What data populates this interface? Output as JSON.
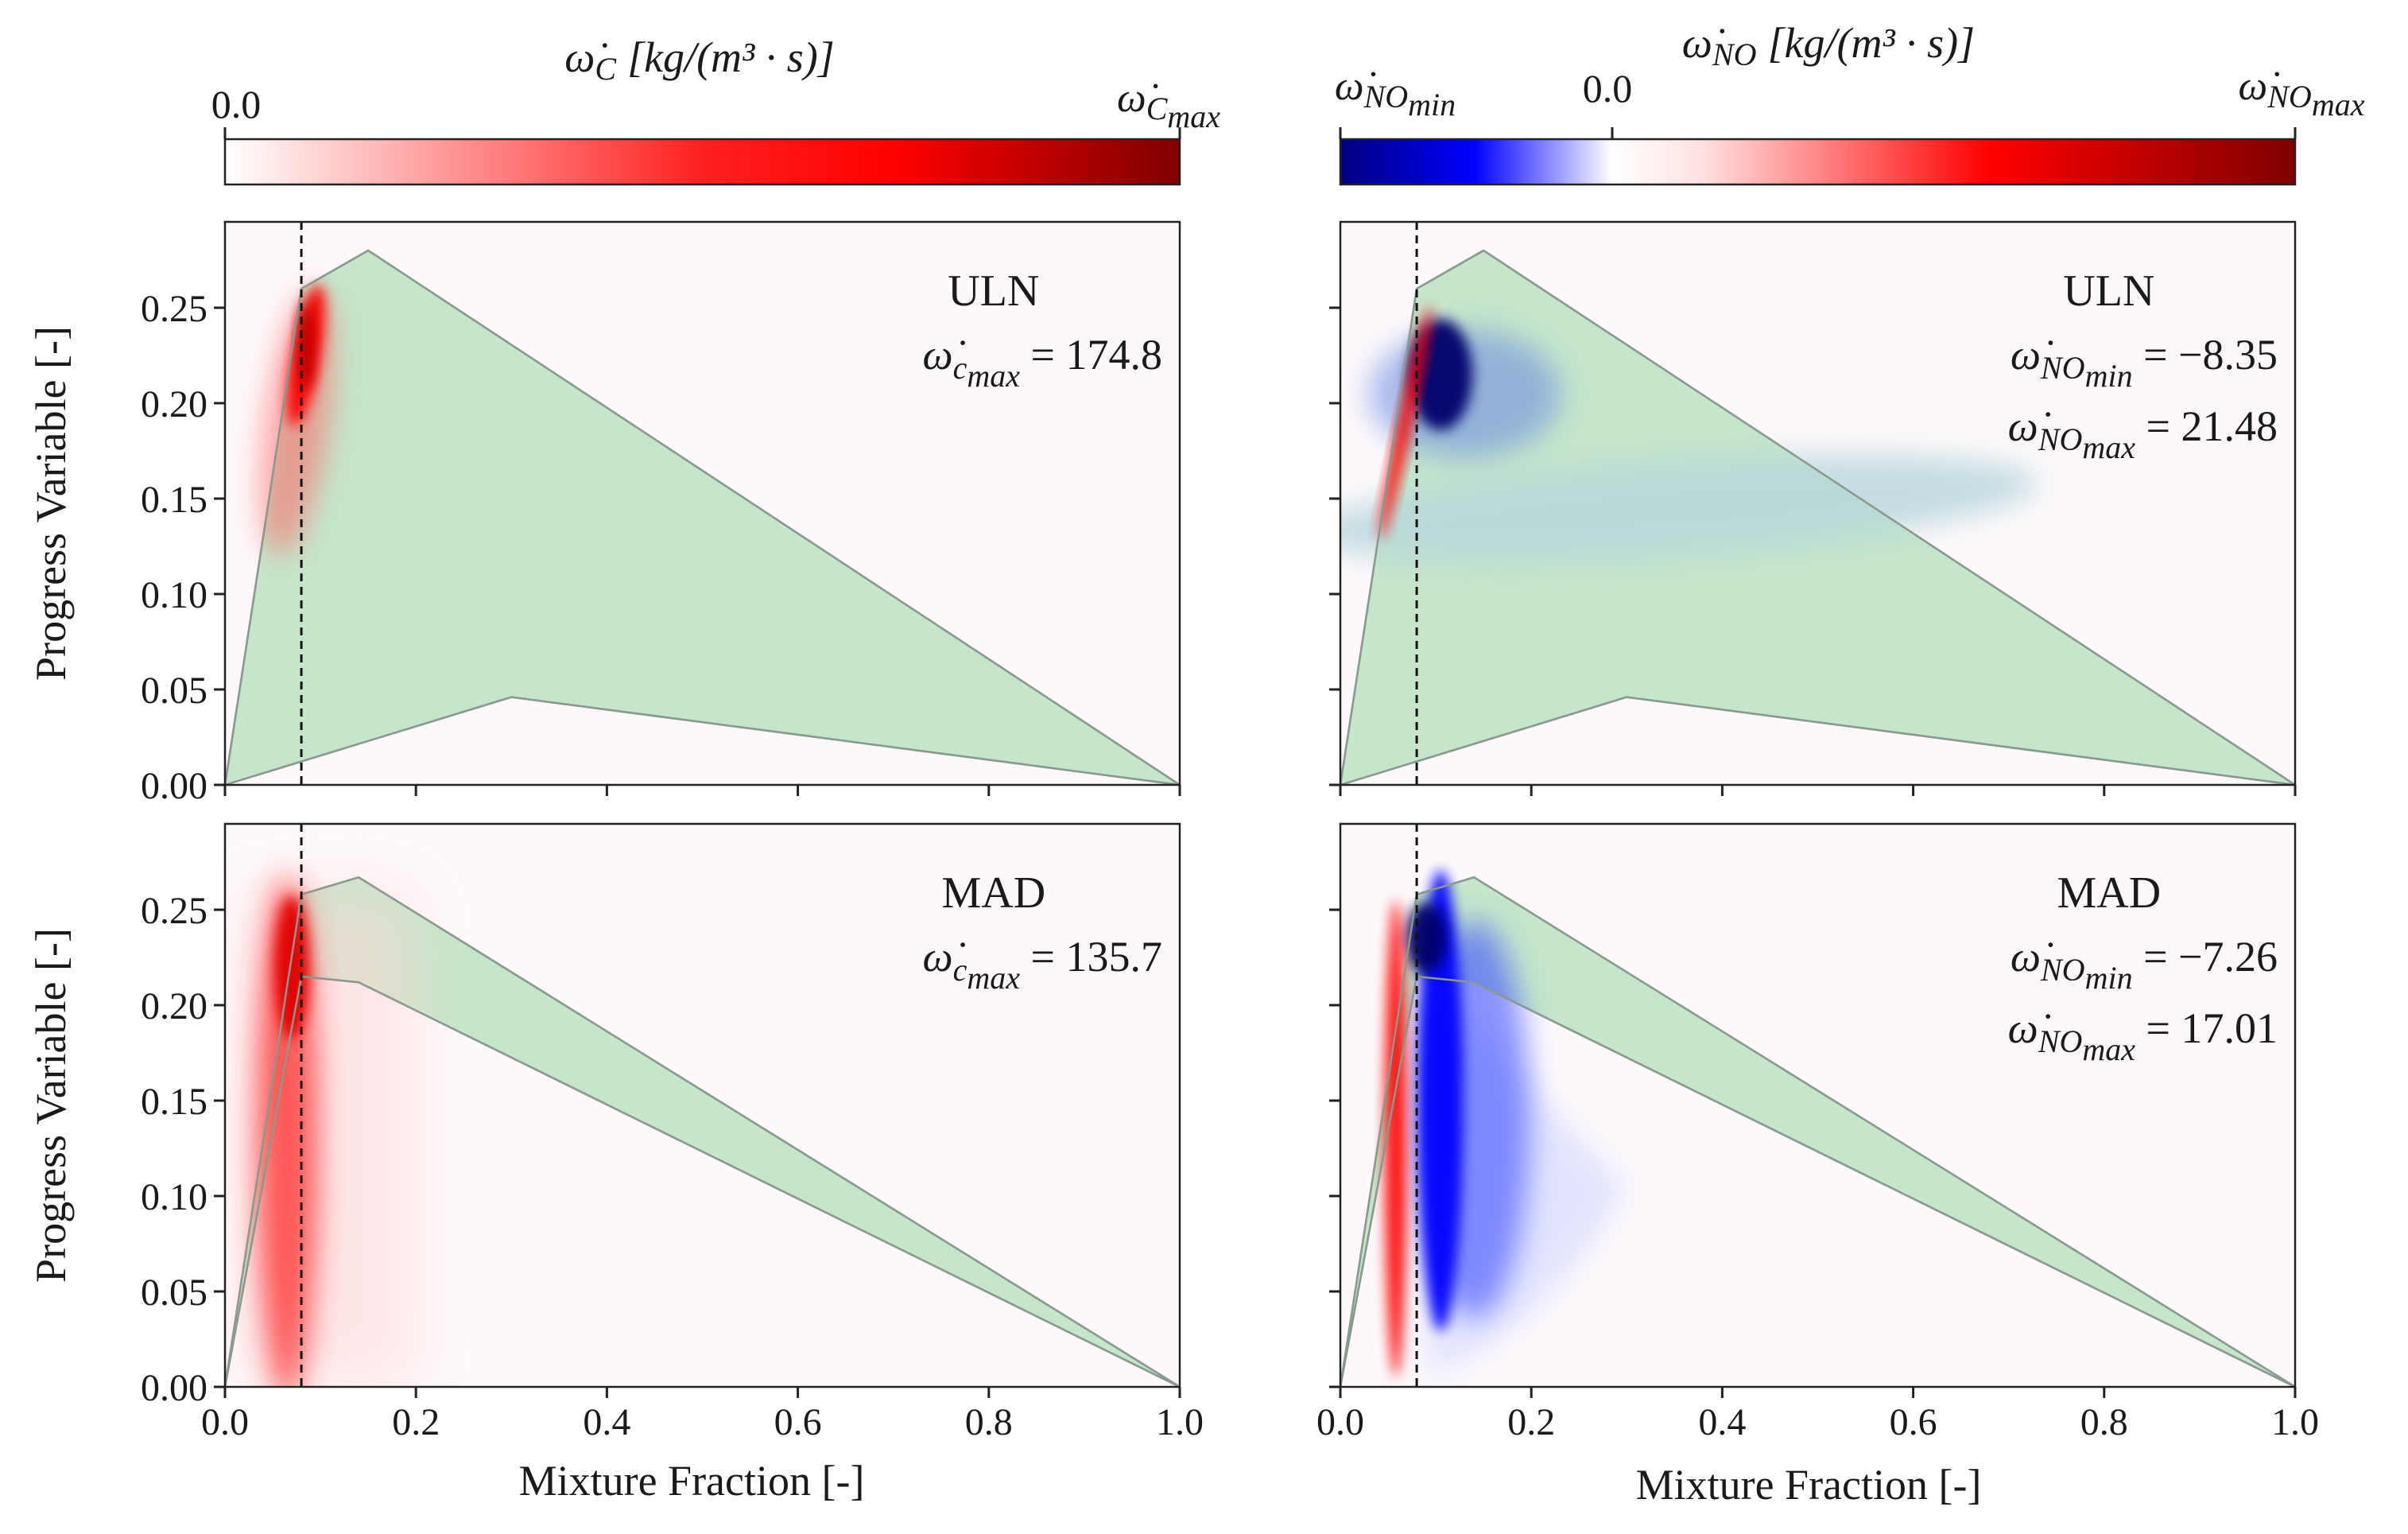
{
  "colorbars": {
    "left": {
      "title": "ω̇C [kg/(m³ · s)]",
      "title_sym": "ω̇",
      "title_sub": "C",
      "title_units": "[kg/(m³ · s)]",
      "min_label": "0.0",
      "max_label": "ω̇Cmax",
      "max_sym": "ω̇",
      "max_sub1": "C",
      "max_sub2": "max",
      "colormap": [
        "#ffffff",
        "#ff0000",
        "#7f0000"
      ]
    },
    "right": {
      "title": "ω̇NO [kg/(m³ · s)]",
      "title_sym": "ω̇",
      "title_sub": "NO",
      "title_units": "[kg/(m³ · s)]",
      "min_label": "ω̇NOmin",
      "min_sym": "ω̇",
      "min_sub1": "NO",
      "min_sub2": "min",
      "zero_label": "0.0",
      "max_label": "ω̇NOmax",
      "max_sym": "ω̇",
      "max_sub1": "NO",
      "max_sub2": "max",
      "colormap": [
        "#00007f",
        "#0000ff",
        "#ffffff",
        "#ff0000",
        "#7f0000"
      ]
    }
  },
  "colors": {
    "domain_fill": "#c5e6cb",
    "domain_edge": "#8a9a8f",
    "background": "#fdf9fb",
    "positive": "#ff0000",
    "positive_dark": "#b00000",
    "negative": "#0000ff",
    "negative_dark": "#00006a"
  },
  "axes": {
    "xlabel": "Mixture Fraction [-]",
    "ylabel": "Progress Variable [-]",
    "xticks": [
      "0.0",
      "0.2",
      "0.4",
      "0.6",
      "0.8",
      "1.0"
    ],
    "yticks": [
      "0.00",
      "0.05",
      "0.10",
      "0.15",
      "0.20",
      "0.25"
    ],
    "xlim": [
      0,
      1
    ],
    "ylim": [
      0,
      0.295
    ]
  },
  "chart_data": [
    {
      "type": "heatmap",
      "panel": "top-left",
      "case": "ULN",
      "variable": "ω̇C",
      "max_label": "ω̇cmax",
      "max_sym": "ω̇",
      "max_sub1": "c",
      "max_sub2": "max",
      "max_value": "174.8",
      "stoich_line_x": 0.08,
      "domain_upper": [
        [
          0,
          0
        ],
        [
          0.08,
          0.26
        ],
        [
          0.15,
          0.28
        ],
        [
          1.0,
          0
        ]
      ],
      "domain_lower": [
        [
          0,
          0
        ],
        [
          0.3,
          0.046
        ],
        [
          1.0,
          0
        ]
      ],
      "hotspot": {
        "x": 0.085,
        "y": 0.225,
        "sign": "positive"
      }
    },
    {
      "type": "heatmap",
      "panel": "top-right",
      "case": "ULN",
      "variable": "ω̇NO",
      "min_label": "ω̇NOmin",
      "min_sym": "ω̇",
      "min_sub1": "NO",
      "min_sub2": "min",
      "min_value": "−8.35",
      "max_label": "ω̇NOmax",
      "max_sym": "ω̇",
      "max_sub1": "NO",
      "max_sub2": "max",
      "max_value": "21.48",
      "stoich_line_x": 0.08,
      "domain_upper": [
        [
          0,
          0
        ],
        [
          0.08,
          0.26
        ],
        [
          0.15,
          0.28
        ],
        [
          1.0,
          0
        ]
      ],
      "domain_lower": [
        [
          0,
          0
        ],
        [
          0.3,
          0.046
        ],
        [
          1.0,
          0
        ]
      ],
      "hotspot": {
        "x": 0.11,
        "y": 0.22,
        "sign": "negative"
      }
    },
    {
      "type": "heatmap",
      "panel": "bottom-left",
      "case": "MAD",
      "variable": "ω̇C",
      "max_label": "ω̇cmax",
      "max_sym": "ω̇",
      "max_sub1": "c",
      "max_sub2": "max",
      "max_value": "135.7",
      "stoich_line_x": 0.08,
      "domain_upper": [
        [
          0,
          0
        ],
        [
          0.08,
          0.258
        ],
        [
          0.14,
          0.267
        ],
        [
          1.0,
          0
        ]
      ],
      "domain_lower": [
        [
          0,
          0
        ],
        [
          0.08,
          0.215
        ],
        [
          0.14,
          0.212
        ],
        [
          1.0,
          0
        ]
      ],
      "hotspot": {
        "x": 0.06,
        "y": 0.14,
        "sign": "positive"
      }
    },
    {
      "type": "heatmap",
      "panel": "bottom-right",
      "case": "MAD",
      "variable": "ω̇NO",
      "min_label": "ω̇NOmin",
      "min_sym": "ω̇",
      "min_sub1": "NO",
      "min_sub2": "min",
      "min_value": "−7.26",
      "max_label": "ω̇NOmax",
      "max_sym": "ω̇",
      "max_sub1": "NO",
      "max_sub2": "max",
      "max_value": "17.01",
      "stoich_line_x": 0.08,
      "domain_upper": [
        [
          0,
          0
        ],
        [
          0.08,
          0.258
        ],
        [
          0.14,
          0.267
        ],
        [
          1.0,
          0
        ]
      ],
      "domain_lower": [
        [
          0,
          0
        ],
        [
          0.08,
          0.215
        ],
        [
          0.14,
          0.212
        ],
        [
          1.0,
          0
        ]
      ],
      "hotspot": {
        "x": 0.11,
        "y": 0.15,
        "sign": "negative"
      }
    }
  ]
}
